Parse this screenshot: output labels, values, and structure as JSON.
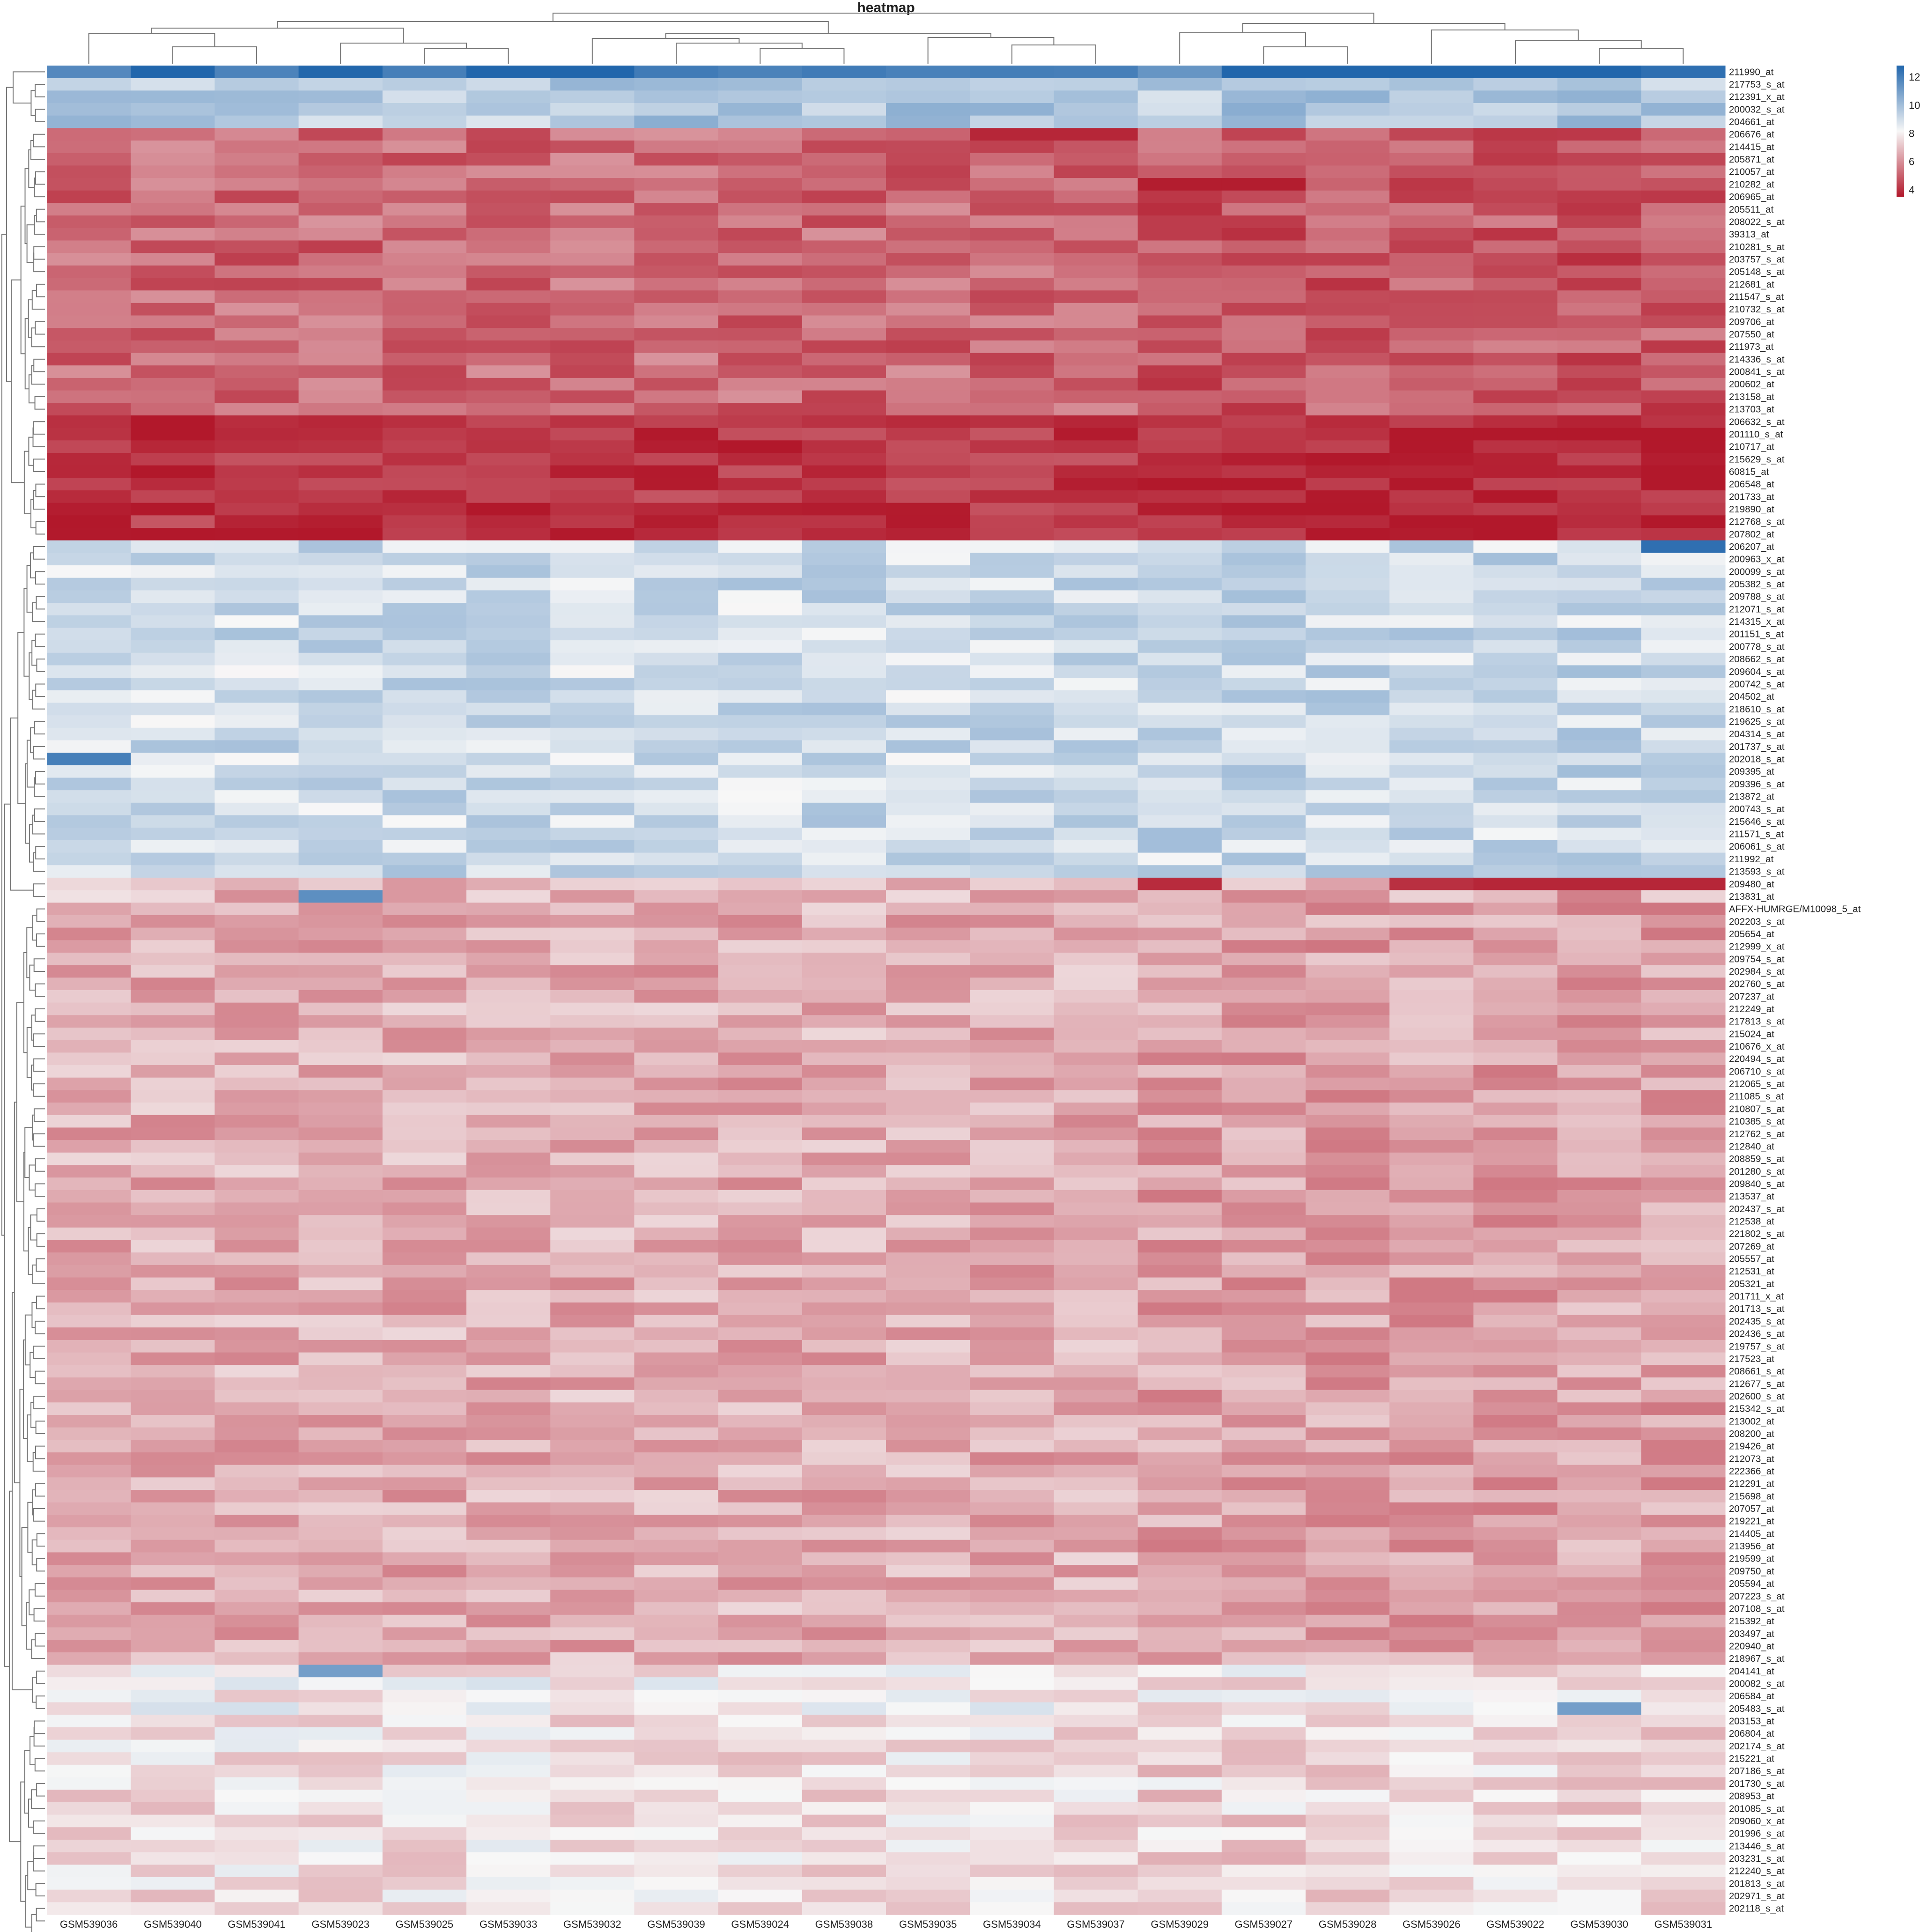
{
  "chart_data": {
    "type": "heatmap",
    "title": "heatmap",
    "columns": [
      "GSM539036",
      "GSM539040",
      "GSM539041",
      "GSM539023",
      "GSM539025",
      "GSM539033",
      "GSM539032",
      "GSM539039",
      "GSM539024",
      "GSM539038",
      "GSM539035",
      "GSM539034",
      "GSM539037",
      "GSM539029",
      "GSM539027",
      "GSM539028",
      "GSM539026",
      "GSM539022",
      "GSM539030",
      "GSM539031"
    ],
    "rows": [
      "211990_at",
      "217753_s_at",
      "212391_x_at",
      "200032_s_at",
      "204661_at",
      "206676_at",
      "214415_at",
      "205871_at",
      "210057_at",
      "210282_at",
      "206965_at",
      "205511_at",
      "208022_s_at",
      "39313_at",
      "210281_s_at",
      "203757_s_at",
      "205148_s_at",
      "212681_at",
      "211547_s_at",
      "210732_s_at",
      "209706_at",
      "207550_at",
      "211973_at",
      "214336_s_at",
      "200841_s_at",
      "200602_at",
      "213158_at",
      "213703_at",
      "206632_s_at",
      "201110_s_at",
      "210717_at",
      "215629_s_at",
      "60815_at",
      "206548_at",
      "201733_at",
      "219890_at",
      "212768_s_at",
      "207802_at",
      "206207_at",
      "200963_x_at",
      "200099_s_at",
      "205382_s_at",
      "209788_s_at",
      "212071_s_at",
      "214315_x_at",
      "201151_s_at",
      "200778_s_at",
      "208662_s_at",
      "209604_s_at",
      "200742_s_at",
      "204502_at",
      "218610_s_at",
      "219625_s_at",
      "204314_s_at",
      "201737_s_at",
      "202018_s_at",
      "209395_at",
      "209396_s_at",
      "213872_at",
      "200743_s_at",
      "215646_s_at",
      "211571_s_at",
      "206061_s_at",
      "211992_at",
      "213593_s_at",
      "209480_at",
      "213831_at",
      "AFFX-HUMRGE/M10098_5_at",
      "202203_s_at",
      "205654_at",
      "212999_x_at",
      "209754_s_at",
      "202984_s_at",
      "202760_s_at",
      "207237_at",
      "212249_at",
      "217813_s_at",
      "215024_at",
      "210676_x_at",
      "220494_s_at",
      "206710_s_at",
      "212065_s_at",
      "211085_s_at",
      "210807_s_at",
      "210385_s_at",
      "212762_s_at",
      "212840_at",
      "208859_s_at",
      "201280_s_at",
      "209840_s_at",
      "213537_at",
      "202437_s_at",
      "212538_at",
      "221802_s_at",
      "207269_at",
      "205557_at",
      "212531_at",
      "205321_at",
      "201711_x_at",
      "201713_s_at",
      "202435_s_at",
      "202436_s_at",
      "219757_s_at",
      "217523_at",
      "208661_s_at",
      "212677_s_at",
      "202600_s_at",
      "215342_s_at",
      "213002_at",
      "208200_at",
      "219426_at",
      "212073_at",
      "222366_at",
      "212291_at",
      "215698_at",
      "207057_at",
      "219221_at",
      "214405_at",
      "213956_at",
      "219599_at",
      "209750_at",
      "205594_at",
      "207223_s_at",
      "207108_s_at",
      "215392_at",
      "203497_at",
      "220940_at",
      "218967_s_at",
      "204141_at",
      "200082_s_at",
      "206584_at",
      "205483_s_at",
      "203153_at",
      "206804_at",
      "202174_s_at",
      "215221_at",
      "207186_s_at",
      "201730_s_at",
      "208953_at",
      "201085_s_at",
      "209060_x_at",
      "201996_s_at",
      "213446_s_at",
      "203231_s_at",
      "212240_s_at",
      "201813_s_at",
      "202971_s_at",
      "202118_s_at"
    ],
    "row_block_means": [
      {
        "rows": [
          0,
          0
        ],
        "value": 12.6
      },
      {
        "rows": [
          1,
          4
        ],
        "value": 9.6
      },
      {
        "rows": [
          5,
          27
        ],
        "value": 5.2
      },
      {
        "rows": [
          28,
          37
        ],
        "value": 4.1
      },
      {
        "rows": [
          38,
          64
        ],
        "value": 9.0
      },
      {
        "rows": [
          65,
          66
        ],
        "value": 6.8
      },
      {
        "rows": [
          67,
          127
        ],
        "value": 6.6
      },
      {
        "rows": [
          128,
          131
        ],
        "value": 8.0
      },
      {
        "rows": [
          132,
          150
        ],
        "value": 7.7
      }
    ],
    "notable_cells": [
      {
        "row": "211990_at",
        "column": "GSM539029",
        "value": 11.3
      },
      {
        "row": "206676_at",
        "column": "GSM539034",
        "value": 3.8
      },
      {
        "row": "206676_at",
        "column": "GSM539037",
        "value": 3.8
      },
      {
        "row": "210282_at",
        "column": "GSM539029",
        "value": 3.6
      },
      {
        "row": "210282_at",
        "column": "GSM539027",
        "value": 3.6
      },
      {
        "row": "206207_at",
        "column": "GSM539031",
        "value": 12.5
      },
      {
        "row": "202018_s_at",
        "column": "GSM539036",
        "value": 12.0
      },
      {
        "row": "209480_at",
        "column": "GSM539029",
        "value": 3.9
      },
      {
        "row": "209480_at",
        "column": "GSM539026",
        "value": 4.0
      },
      {
        "row": "209480_at",
        "column": "GSM539022",
        "value": 3.8
      },
      {
        "row": "209480_at",
        "column": "GSM539030",
        "value": 3.8
      },
      {
        "row": "209480_at",
        "column": "GSM539031",
        "value": 3.8
      },
      {
        "row": "213831_at",
        "column": "GSM539023",
        "value": 11.5
      },
      {
        "row": "204141_at",
        "column": "GSM539023",
        "value": 11.0
      },
      {
        "row": "205483_s_at",
        "column": "GSM539030",
        "value": 11.0
      }
    ],
    "color_scale": {
      "min": 3.5,
      "max": 12.8,
      "ticks": [
        4,
        6,
        8,
        10,
        12
      ],
      "colors": [
        "#b2182b",
        "#f7f7f7",
        "#2166ac"
      ]
    },
    "legend_position": "top-right",
    "column_dendrogram": true,
    "row_dendrogram": true,
    "grid": false
  }
}
